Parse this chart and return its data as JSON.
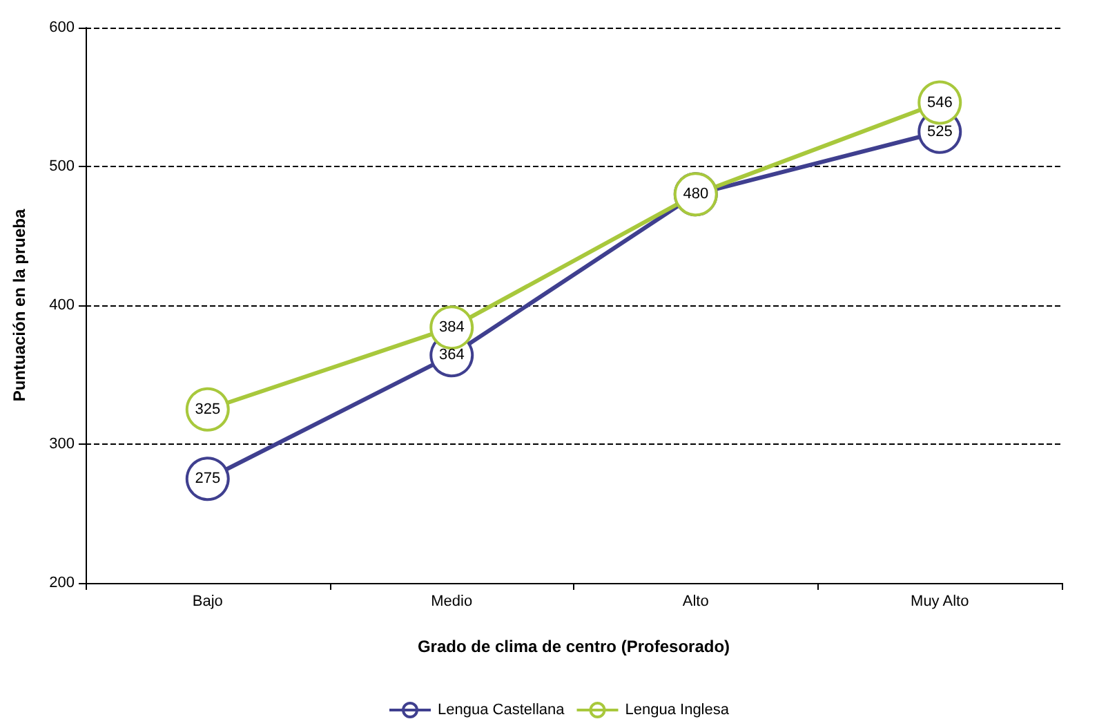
{
  "chart_data": {
    "type": "line",
    "xlabel": "Grado de clima de centro (Profesorado)",
    "ylabel": "Puntuación en la prueba",
    "categories": [
      "Bajo",
      "Medio",
      "Alto",
      "Muy Alto"
    ],
    "series": [
      {
        "name": "Lengua Castellana",
        "color": "#3f3f8f",
        "values": [
          275,
          364,
          480,
          525
        ],
        "value_labels": [
          "275",
          "364",
          null,
          "525"
        ]
      },
      {
        "name": "Lengua Inglesa",
        "color": "#a8c83c",
        "values": [
          325,
          384,
          480,
          546
        ],
        "value_labels": [
          "325",
          "384",
          "480",
          "546"
        ]
      }
    ],
    "ylim": [
      200,
      600
    ],
    "yticks": [
      200,
      300,
      400,
      500,
      600
    ],
    "grid": "y",
    "legend": "bottom",
    "marker": "circle",
    "line_style": "solid"
  }
}
